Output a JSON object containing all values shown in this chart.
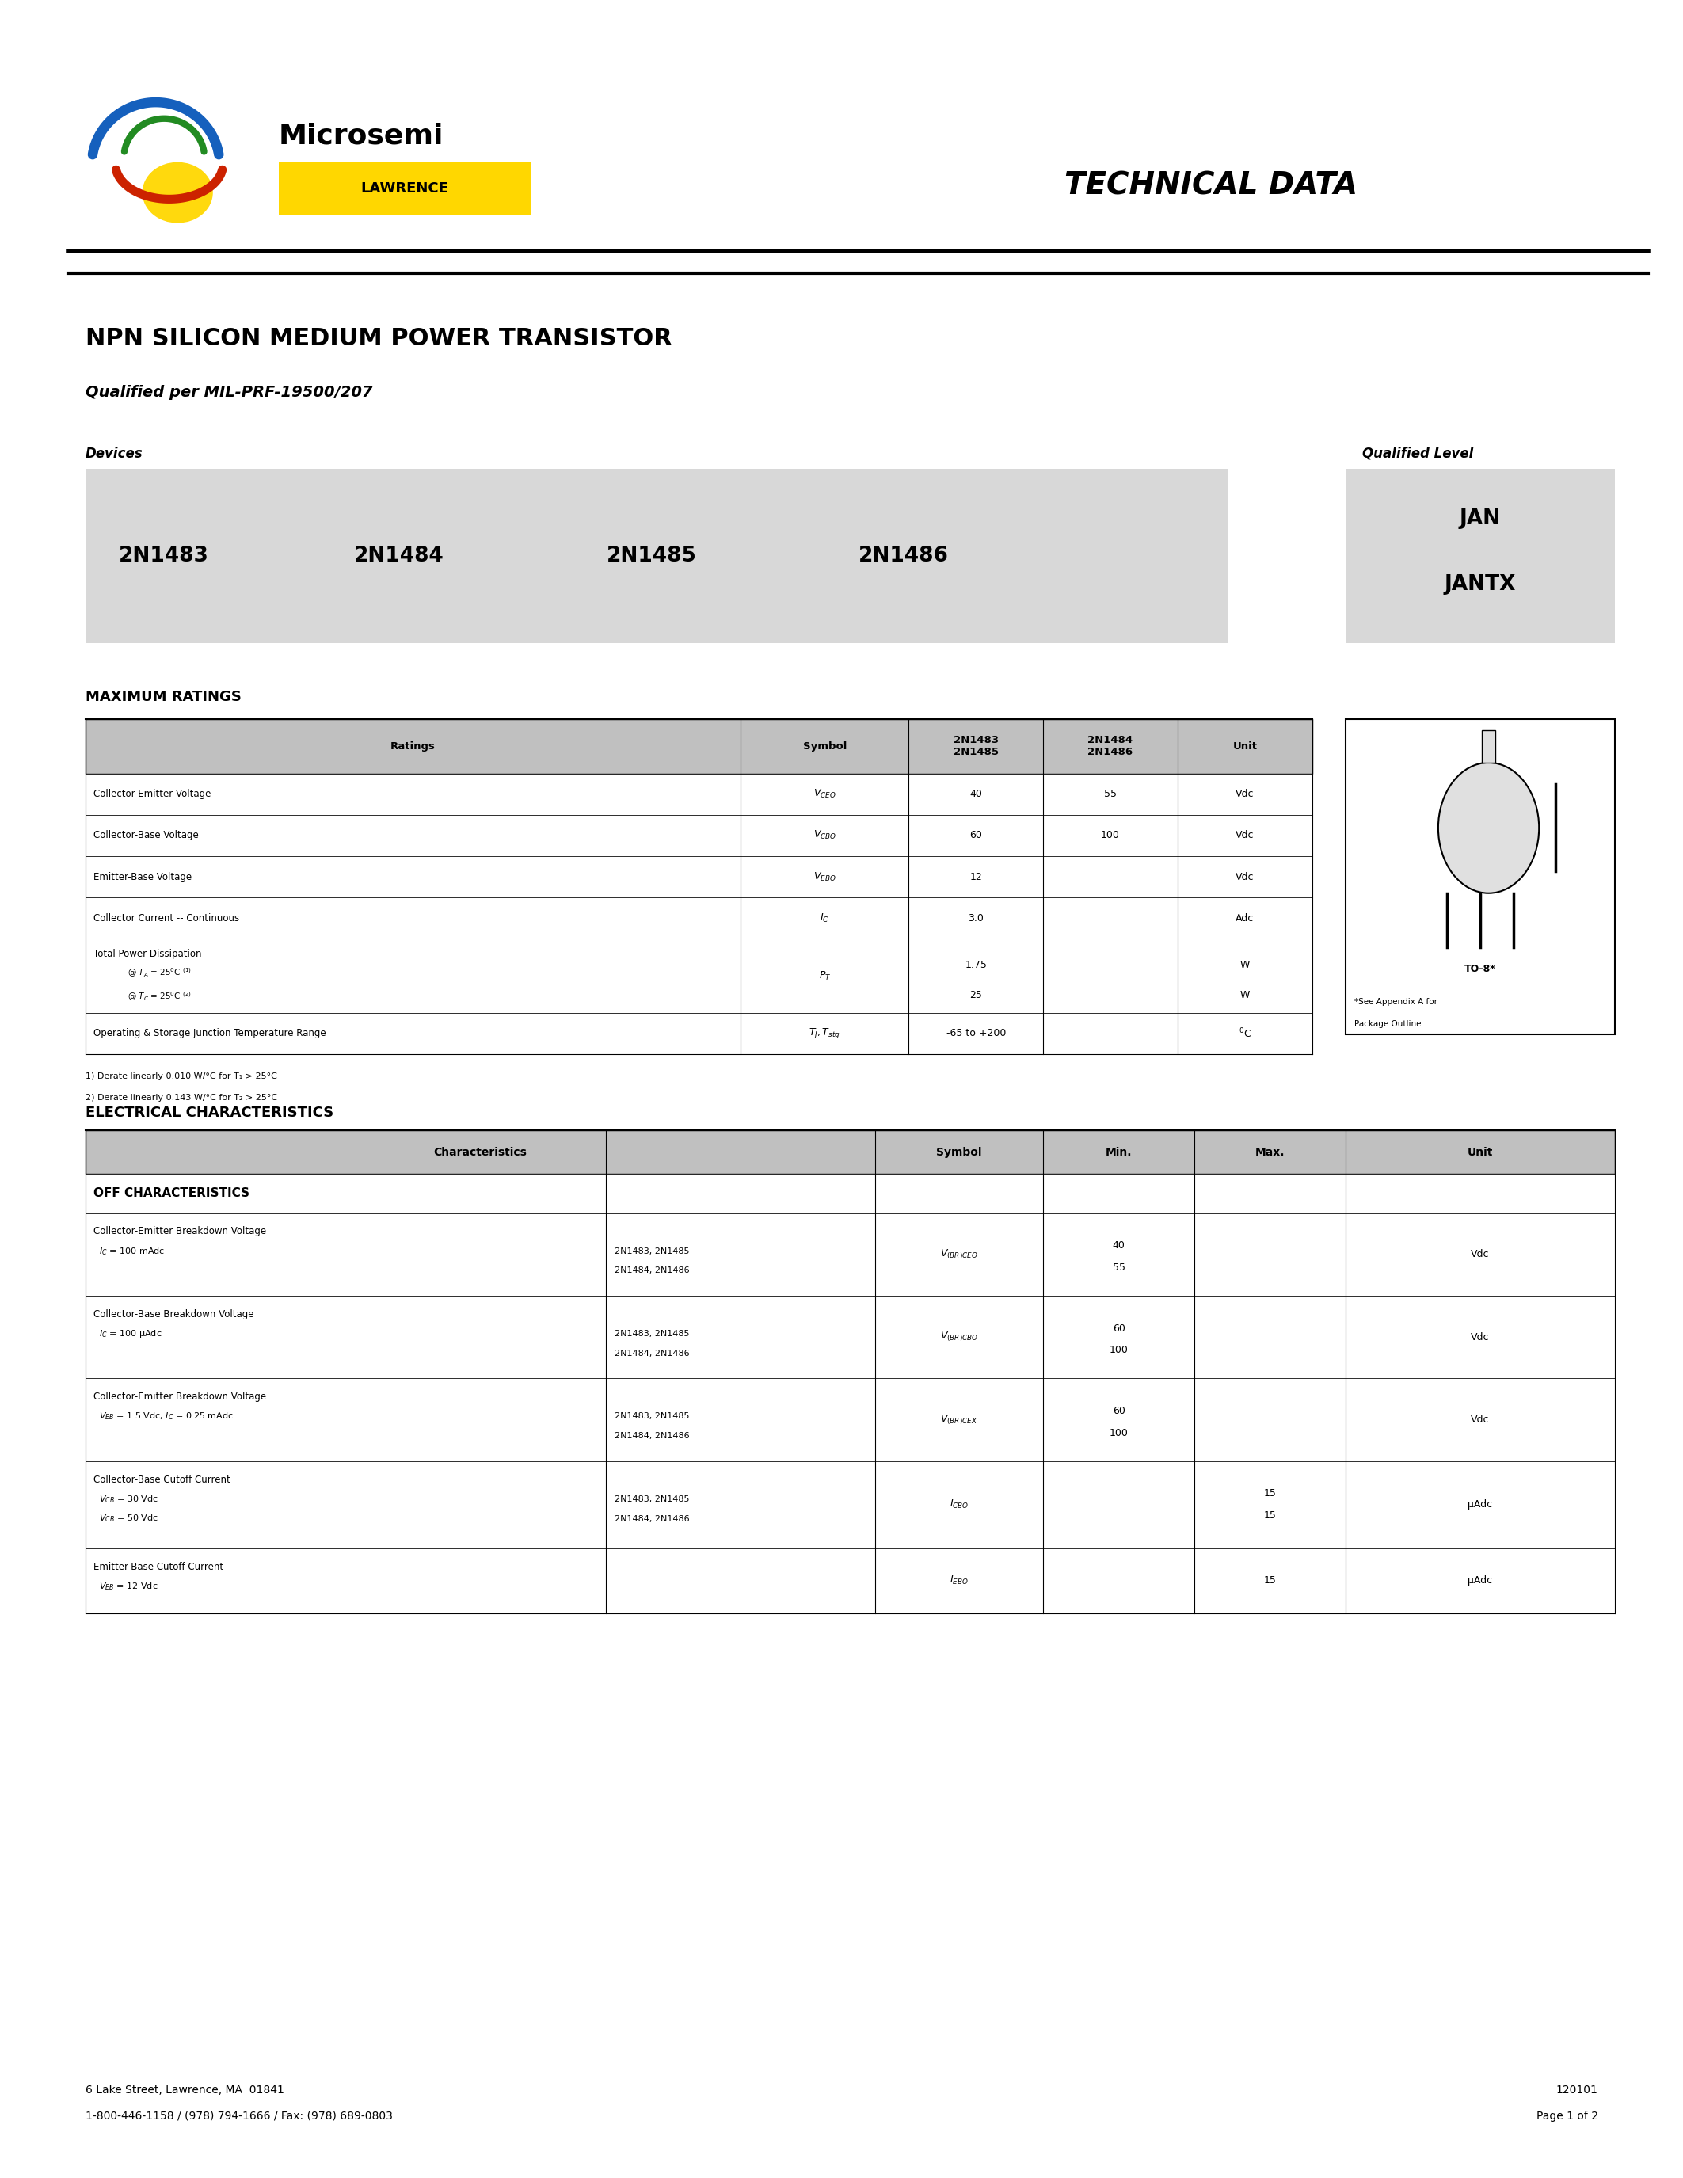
{
  "page_width": 21.25,
  "page_height": 27.5,
  "background_color": "#ffffff",
  "title": "NPN SILICON MEDIUM POWER TRANSISTOR",
  "subtitle": "Qualified per MIL-PRF-19500/207",
  "tech_data_text": "TECHNICAL DATA",
  "devices_label": "Devices",
  "qualified_level_label": "Qualified Level",
  "devices": [
    "2N1483",
    "2N1484",
    "2N1485",
    "2N1486"
  ],
  "qualified_levels": [
    "JAN",
    "JANTX"
  ],
  "max_ratings_title": "MAXIMUM RATINGS",
  "elec_char_title": "ELECTRICAL CHARACTERISTICS",
  "off_char_title": "OFF CHARACTERISTICS",
  "footer_left1": "6 Lake Street, Lawrence, MA  01841",
  "footer_left2": "1-800-446-1158 / (978) 794-1666 / Fax: (978) 689-0803",
  "footer_right1": "120101",
  "footer_right2": "Page 1 of 2",
  "gray_color": "#d8d8d8",
  "header_bg_color": "#c0c0c0",
  "line_color": "#000000"
}
